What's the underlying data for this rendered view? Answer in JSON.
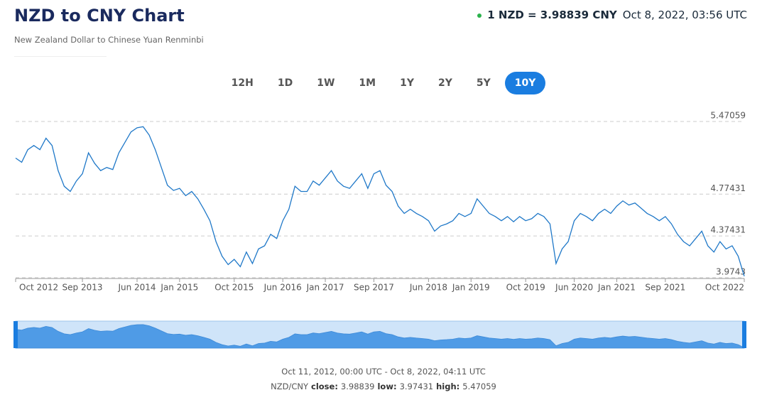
{
  "header": {
    "title": "NZD to CNY Chart",
    "subtitle": "New Zealand Dollar to Chinese Yuan Renminbi",
    "rate": "1 NZD = 3.98839 CNY",
    "time": "Oct 8, 2022, 03:56 UTC"
  },
  "range_buttons": {
    "options": [
      "12H",
      "1D",
      "1W",
      "1M",
      "1Y",
      "2Y",
      "5Y",
      "10Y"
    ],
    "selected": 7
  },
  "chart_data": {
    "type": "line",
    "color": "#1f78c8",
    "grid": true,
    "x": [
      "Oct 2012",
      "Nov 2012",
      "Dec 2012",
      "Jan 2013",
      "Feb 2013",
      "Mar 2013",
      "Apr 2013",
      "May 2013",
      "Jun 2013",
      "Jul 2013",
      "Aug 2013",
      "Sep 2013",
      "Oct 2013",
      "Nov 2013",
      "Dec 2013",
      "Jan 2014",
      "Feb 2014",
      "Mar 2014",
      "Apr 2014",
      "May 2014",
      "Jun 2014",
      "Jul 2014",
      "Aug 2014",
      "Sep 2014",
      "Oct 2014",
      "Nov 2014",
      "Dec 2014",
      "Jan 2015",
      "Feb 2015",
      "Mar 2015",
      "Apr 2015",
      "May 2015",
      "Jun 2015",
      "Jul 2015",
      "Aug 2015",
      "Sep 2015",
      "Oct 2015",
      "Nov 2015",
      "Dec 2015",
      "Jan 2016",
      "Feb 2016",
      "Mar 2016",
      "Apr 2016",
      "May 2016",
      "Jun 2016",
      "Jul 2016",
      "Aug 2016",
      "Sep 2016",
      "Oct 2016",
      "Nov 2016",
      "Dec 2016",
      "Jan 2017",
      "Feb 2017",
      "Mar 2017",
      "Apr 2017",
      "May 2017",
      "Jun 2017",
      "Jul 2017",
      "Aug 2017",
      "Sep 2017",
      "Oct 2017",
      "Nov 2017",
      "Dec 2017",
      "Jan 2018",
      "Feb 2018",
      "Mar 2018",
      "Apr 2018",
      "May 2018",
      "Jun 2018",
      "Jul 2018",
      "Aug 2018",
      "Sep 2018",
      "Oct 2018",
      "Nov 2018",
      "Dec 2018",
      "Jan 2019",
      "Feb 2019",
      "Mar 2019",
      "Apr 2019",
      "May 2019",
      "Jun 2019",
      "Jul 2019",
      "Aug 2019",
      "Sep 2019",
      "Oct 2019",
      "Nov 2019",
      "Dec 2019",
      "Jan 2020",
      "Feb 2020",
      "Mar 2020",
      "Apr 2020",
      "May 2020",
      "Jun 2020",
      "Jul 2020",
      "Aug 2020",
      "Sep 2020",
      "Oct 2020",
      "Nov 2020",
      "Dec 2020",
      "Jan 2021",
      "Feb 2021",
      "Mar 2021",
      "Apr 2021",
      "May 2021",
      "Jun 2021",
      "Jul 2021",
      "Aug 2021",
      "Sep 2021",
      "Oct 2021",
      "Nov 2021",
      "Dec 2021",
      "Jan 2022",
      "Feb 2022",
      "Mar 2022",
      "Apr 2022",
      "May 2022",
      "Jun 2022",
      "Jul 2022",
      "Aug 2022",
      "Sep 2022",
      "Oct 2022"
    ],
    "values": [
      5.12,
      5.08,
      5.2,
      5.24,
      5.2,
      5.31,
      5.24,
      5.0,
      4.85,
      4.8,
      4.9,
      4.97,
      5.17,
      5.07,
      5.0,
      5.03,
      5.01,
      5.17,
      5.27,
      5.37,
      5.41,
      5.42,
      5.34,
      5.2,
      5.03,
      4.86,
      4.81,
      4.83,
      4.76,
      4.8,
      4.73,
      4.63,
      4.52,
      4.32,
      4.18,
      4.1,
      4.15,
      4.08,
      4.22,
      4.11,
      4.25,
      4.28,
      4.39,
      4.35,
      4.52,
      4.63,
      4.85,
      4.8,
      4.8,
      4.9,
      4.86,
      4.93,
      5.0,
      4.9,
      4.85,
      4.83,
      4.9,
      4.97,
      4.83,
      4.97,
      5.0,
      4.86,
      4.8,
      4.66,
      4.59,
      4.63,
      4.59,
      4.56,
      4.52,
      4.42,
      4.47,
      4.49,
      4.52,
      4.59,
      4.56,
      4.59,
      4.73,
      4.66,
      4.59,
      4.56,
      4.52,
      4.56,
      4.51,
      4.56,
      4.52,
      4.54,
      4.59,
      4.56,
      4.49,
      4.11,
      4.25,
      4.32,
      4.52,
      4.59,
      4.56,
      4.52,
      4.59,
      4.63,
      4.59,
      4.66,
      4.71,
      4.67,
      4.69,
      4.64,
      4.59,
      4.56,
      4.52,
      4.56,
      4.49,
      4.39,
      4.32,
      4.28,
      4.35,
      4.42,
      4.28,
      4.22,
      4.32,
      4.25,
      4.28,
      4.18,
      3.98839
    ],
    "xticks": [
      "Oct 2012",
      "Sep 2013",
      "Jun 2014",
      "Jan 2015",
      "Oct 2015",
      "Jun 2016",
      "Jan 2017",
      "Sep 2017",
      "Jun 2018",
      "Jan 2019",
      "Oct 2019",
      "Jun 2020",
      "Jan 2021",
      "Sep 2021",
      "Oct 2022"
    ],
    "ylim": [
      3.967,
      5.545
    ],
    "yticks": [
      {
        "value": 3.97431,
        "label": "3.9743"
      },
      4.37431,
      4.77431,
      5.47059
    ]
  },
  "footer": {
    "range": "Oct 11, 2012, 00:00 UTC - Oct 8, 2022, 04:11 UTC",
    "pair": "NZD/CNY",
    "stats": [
      {
        "label": "close:",
        "value": "3.98839"
      },
      {
        "label": "low:",
        "value": "3.97431"
      },
      {
        "label": "high:",
        "value": "5.47059"
      }
    ]
  }
}
